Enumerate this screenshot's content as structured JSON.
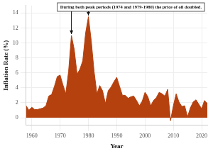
{
  "chart_data": {
    "type": "area",
    "x_label": "Year",
    "y_label": "Inflation Rate (%)",
    "annotation": {
      "text": "During both peak periods (1974 and 1979-1980) the price of oil doubled.",
      "x": [
        1974,
        1980
      ]
    },
    "x": [
      1958,
      1959,
      1960,
      1961,
      1962,
      1963,
      1964,
      1965,
      1966,
      1967,
      1968,
      1969,
      1970,
      1971,
      1972,
      1973,
      1974,
      1975,
      1976,
      1977,
      1978,
      1979,
      1980,
      1981,
      1982,
      1983,
      1984,
      1985,
      1986,
      1987,
      1988,
      1989,
      1990,
      1991,
      1992,
      1993,
      1994,
      1995,
      1996,
      1997,
      1998,
      1999,
      2000,
      2001,
      2002,
      2003,
      2004,
      2005,
      2006,
      2007,
      2008,
      2009,
      2010,
      2011,
      2012,
      2013,
      2014,
      2015,
      2016,
      2017,
      2018,
      2019,
      2020,
      2021,
      2022
    ],
    "values": [
      1.6,
      1.0,
      1.4,
      1.1,
      1.1,
      1.2,
      1.3,
      1.6,
      2.9,
      3.1,
      4.2,
      5.5,
      5.7,
      4.4,
      3.2,
      6.2,
      11.0,
      9.1,
      5.8,
      6.5,
      7.6,
      11.3,
      13.5,
      10.3,
      6.2,
      3.2,
      4.3,
      3.6,
      1.9,
      3.6,
      4.1,
      4.8,
      5.4,
      4.2,
      3.0,
      3.0,
      2.6,
      2.8,
      2.9,
      2.3,
      1.6,
      2.2,
      3.4,
      2.8,
      1.6,
      2.3,
      2.7,
      3.4,
      3.2,
      2.9,
      3.8,
      -0.4,
      1.6,
      3.2,
      2.1,
      1.5,
      1.6,
      0.1,
      1.3,
      2.1,
      2.4,
      1.8,
      1.2,
      2.3,
      1.9
    ],
    "color": "#b5410f",
    "xlim": [
      1958,
      2022
    ],
    "xticks": [
      1960,
      1970,
      1980,
      1990,
      2000,
      2010,
      2020
    ],
    "ylim": [
      -1,
      15
    ],
    "yticks": [
      0,
      2,
      4,
      6,
      8,
      10,
      12,
      14
    ],
    "grid": true
  }
}
